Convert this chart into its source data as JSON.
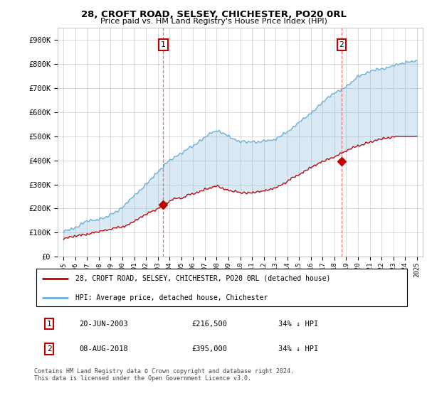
{
  "title": "28, CROFT ROAD, SELSEY, CHICHESTER, PO20 0RL",
  "subtitle": "Price paid vs. HM Land Registry's House Price Index (HPI)",
  "ylabel_ticks": [
    "£0",
    "£100K",
    "£200K",
    "£300K",
    "£400K",
    "£500K",
    "£600K",
    "£700K",
    "£800K",
    "£900K"
  ],
  "ytick_values": [
    0,
    100000,
    200000,
    300000,
    400000,
    500000,
    600000,
    700000,
    800000,
    900000
  ],
  "xlim": [
    1994.5,
    2025.5
  ],
  "ylim": [
    0,
    950000
  ],
  "hpi_color": "#6aaed6",
  "price_color": "#c00000",
  "vline_color": "#e07070",
  "fill_color": "#ddeeff",
  "marker1_x": 2003.47,
  "marker1_y": 216500,
  "marker2_x": 2018.6,
  "marker2_y": 395000,
  "vline1_x": 2003.47,
  "vline2_x": 2018.6,
  "legend_label_red": "28, CROFT ROAD, SELSEY, CHICHESTER, PO20 0RL (detached house)",
  "legend_label_blue": "HPI: Average price, detached house, Chichester",
  "table_row1": [
    "1",
    "20-JUN-2003",
    "£216,500",
    "34% ↓ HPI"
  ],
  "table_row2": [
    "2",
    "08-AUG-2018",
    "£395,000",
    "34% ↓ HPI"
  ],
  "footnote": "Contains HM Land Registry data © Crown copyright and database right 2024.\nThis data is licensed under the Open Government Licence v3.0.",
  "background_color": "#ffffff",
  "grid_color": "#cccccc"
}
